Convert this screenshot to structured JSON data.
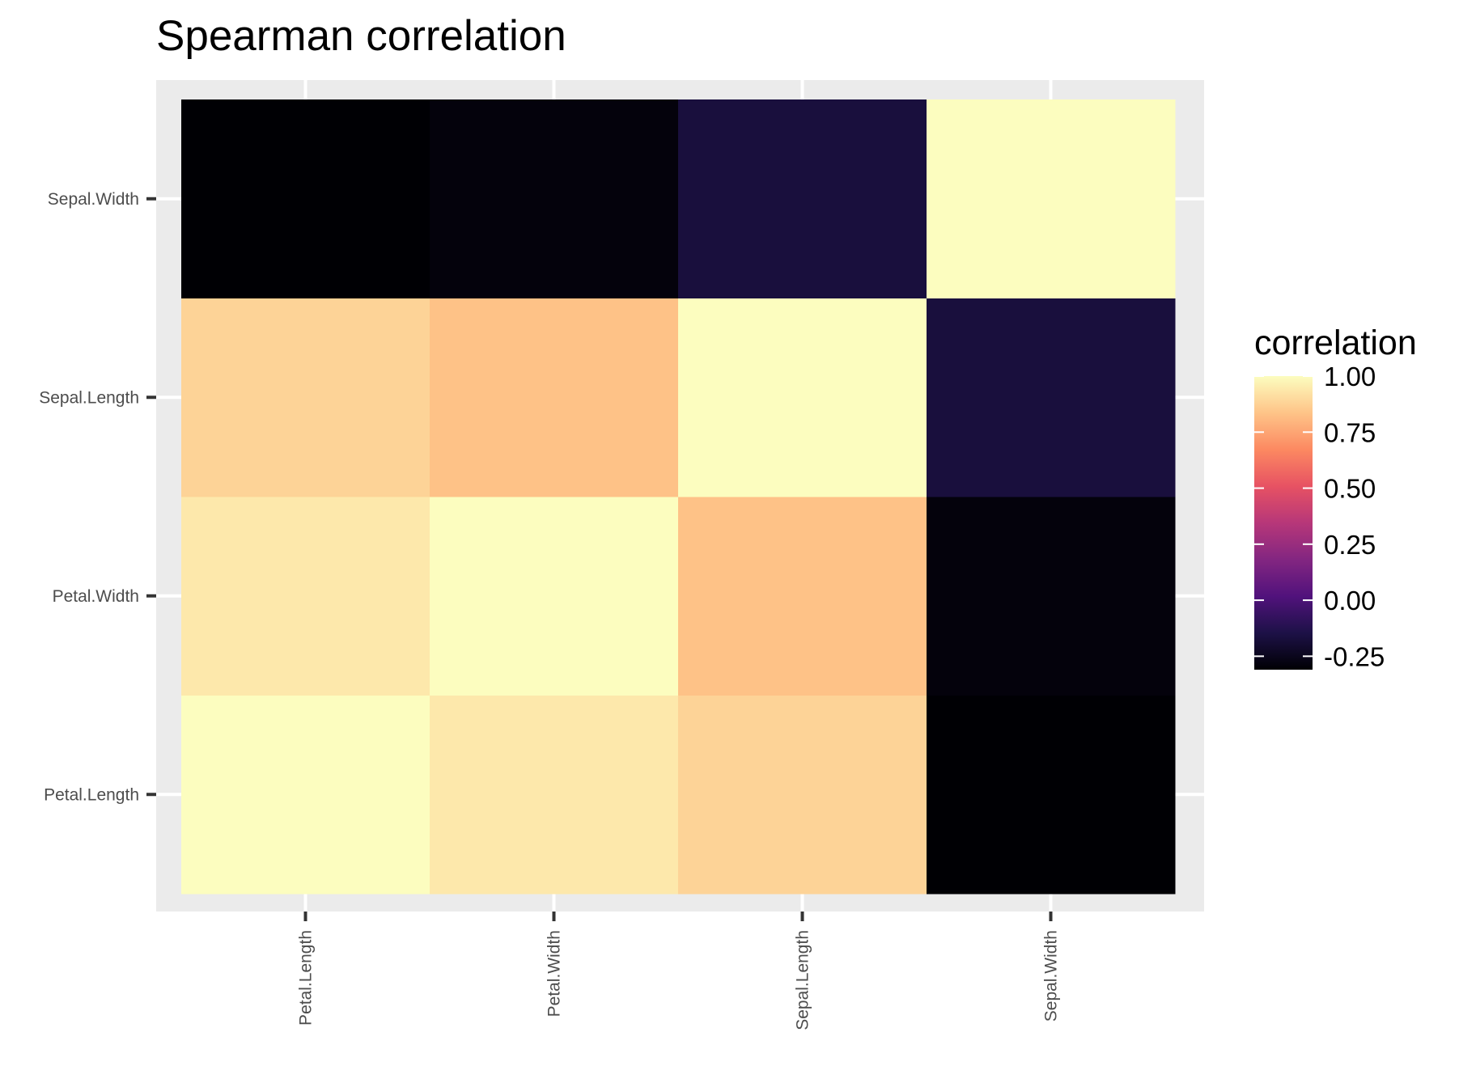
{
  "chart_data": {
    "type": "heatmap",
    "title": "Spearman correlation",
    "xlabel": "",
    "ylabel": "",
    "x_categories": [
      "Petal.Length",
      "Petal.Width",
      "Sepal.Length",
      "Sepal.Width"
    ],
    "y_categories": [
      "Petal.Length",
      "Petal.Width",
      "Sepal.Length",
      "Sepal.Width"
    ],
    "matrix": [
      [
        1.0,
        0.94,
        0.88,
        -0.31
      ],
      [
        0.94,
        1.0,
        0.83,
        -0.29
      ],
      [
        0.88,
        0.83,
        1.0,
        -0.17
      ],
      [
        -0.31,
        -0.29,
        -0.17,
        1.0
      ]
    ],
    "colormap": "magma",
    "color_range": [
      -0.31,
      1.0
    ],
    "colors": {
      "panel_background": "#ebebeb",
      "grid": "#ffffff",
      "axis_tick": "#333333",
      "colormap_stops": [
        "#000004",
        "#1d1147",
        "#51127c",
        "#832681",
        "#b73779",
        "#e75263",
        "#fc8961",
        "#fec488",
        "#fcfdbf"
      ]
    },
    "grid": true,
    "legend": {
      "title": "correlation",
      "position": "right",
      "ticks": [
        1.0,
        0.75,
        0.5,
        0.25,
        0.0,
        -0.25
      ],
      "tick_labels": [
        "1.00",
        "0.75",
        "0.50",
        "0.25",
        "0.00",
        "-0.25"
      ]
    }
  }
}
